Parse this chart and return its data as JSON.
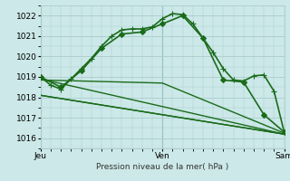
{
  "title": "",
  "xlabel": "Pression niveau de la mer( hPa )",
  "bg_color": "#cce8e8",
  "grid_color": "#aacccc",
  "line_color": "#1a6b1a",
  "vline_color": "#5599aa",
  "ylim": [
    1015.5,
    1022.5
  ],
  "yticks": [
    1016,
    1017,
    1018,
    1019,
    1020,
    1021,
    1022
  ],
  "xtick_labels": [
    "Jeu",
    "Ven",
    "Sam"
  ],
  "xtick_positions": [
    0,
    24,
    48
  ],
  "x_total": 48,
  "series": [
    {
      "x": [
        0,
        2,
        4,
        6,
        8,
        10,
        12,
        14,
        16,
        18,
        20,
        22,
        24,
        26,
        28,
        30,
        32,
        34,
        36,
        38,
        40,
        42,
        44,
        46,
        48
      ],
      "y": [
        1019.0,
        1018.6,
        1018.4,
        1018.9,
        1019.4,
        1019.9,
        1020.5,
        1021.0,
        1021.3,
        1021.35,
        1021.35,
        1021.45,
        1021.85,
        1022.1,
        1022.05,
        1021.6,
        1020.9,
        1020.2,
        1019.4,
        1018.85,
        1018.8,
        1019.05,
        1019.1,
        1018.3,
        1016.3
      ],
      "lw": 1.2,
      "marker": "+",
      "ms": 4
    },
    {
      "x": [
        0,
        4,
        8,
        12,
        16,
        20,
        24,
        28,
        32,
        36,
        40,
        44,
        48
      ],
      "y": [
        1019.0,
        1018.5,
        1019.3,
        1020.4,
        1021.1,
        1021.2,
        1021.6,
        1022.0,
        1020.9,
        1018.85,
        1018.75,
        1017.15,
        1016.3
      ],
      "lw": 1.2,
      "marker": "D",
      "ms": 3
    },
    {
      "x": [
        0,
        48
      ],
      "y": [
        1018.1,
        1016.2
      ],
      "lw": 1.0,
      "marker": null,
      "ms": 0
    },
    {
      "x": [
        0,
        48
      ],
      "y": [
        1018.1,
        1016.2
      ],
      "lw": 1.0,
      "marker": null,
      "ms": 0
    },
    {
      "x": [
        0,
        48
      ],
      "y": [
        1018.9,
        1016.2
      ],
      "lw": 1.0,
      "marker": null,
      "ms": 0
    },
    {
      "x": [
        0,
        24,
        48
      ],
      "y": [
        1018.85,
        1018.7,
        1016.25
      ],
      "lw": 1.0,
      "marker": null,
      "ms": 0
    }
  ]
}
